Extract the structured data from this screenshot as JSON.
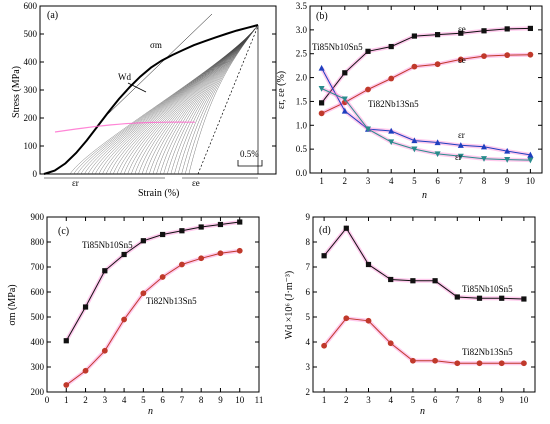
{
  "chart_data": [
    {
      "panel": "(a)",
      "type": "line",
      "title": "",
      "xlabel": "Strain (%)",
      "ylabel": "Stress (MPa)",
      "ylim": [
        0,
        600
      ],
      "yticks": [
        "0",
        "100",
        "200",
        "300",
        "400",
        "500",
        "600"
      ],
      "scale_bar_label": "0.5%",
      "annotations": {
        "sigma_m": "σm",
        "wd": "Wd",
        "eps_r": "εr",
        "eps_e": "εe"
      },
      "grid": false,
      "loading_curve": {
        "strain_fraction": [
          0,
          0.05,
          0.1,
          0.15,
          0.2,
          0.25,
          0.3,
          0.35,
          0.4,
          0.45,
          0.5,
          0.55,
          0.6,
          0.65,
          0.7,
          0.75,
          0.8,
          0.85,
          0.9,
          0.95,
          1.0
        ],
        "stress": [
          0,
          12,
          38,
          75,
          120,
          170,
          220,
          268,
          310,
          348,
          380,
          405,
          425,
          443,
          460,
          474,
          487,
          500,
          512,
          522,
          532
        ]
      },
      "unloading_stress_peak": 532
    },
    {
      "panel": "(b)",
      "type": "line",
      "xlabel": "n",
      "ylabel": "εr, εe (%)",
      "xlim": [
        0.5,
        10.5
      ],
      "ylim": [
        0,
        3.5
      ],
      "xticks": [
        "1",
        "2",
        "3",
        "4",
        "5",
        "6",
        "7",
        "8",
        "9",
        "10"
      ],
      "yticks": [
        "0.0",
        "0.5",
        "1.0",
        "1.5",
        "2.0",
        "2.5",
        "3.0",
        "3.5"
      ],
      "x": [
        1,
        2,
        3,
        4,
        5,
        6,
        7,
        8,
        9,
        10
      ],
      "series": [
        {
          "name": "εe Ti85Nb10Sn5",
          "marker": "square",
          "color": "#111111",
          "halo": "#ff66cc",
          "values": [
            1.47,
            2.1,
            2.55,
            2.65,
            2.87,
            2.9,
            2.93,
            2.98,
            3.02,
            3.03
          ]
        },
        {
          "name": "εe Ti82Nb13Sn5",
          "marker": "circle",
          "color": "#c0392b",
          "halo": "#ff66cc",
          "values": [
            1.25,
            1.48,
            1.75,
            1.98,
            2.23,
            2.28,
            2.38,
            2.45,
            2.47,
            2.48
          ]
        },
        {
          "name": "εr Ti85Nb10Sn5",
          "marker": "triangle-up",
          "color": "#1f3fbf",
          "halo": "#ff66cc",
          "values": [
            2.2,
            1.3,
            0.92,
            0.88,
            0.68,
            0.64,
            0.58,
            0.55,
            0.46,
            0.38
          ]
        },
        {
          "name": "εr Ti82Nb13Sn5",
          "marker": "triangle-down",
          "color": "#2a8c8c",
          "halo": "#ff66cc",
          "values": [
            1.77,
            1.55,
            0.92,
            0.65,
            0.5,
            0.4,
            0.35,
            0.3,
            0.28,
            0.27
          ]
        }
      ],
      "labels": {
        "alloy1": "Ti85Nb10Sn5",
        "alloy2": "Ti82Nb13Sn5",
        "eps_e": "εe",
        "eps_r": "εr"
      }
    },
    {
      "panel": "(c)",
      "type": "line",
      "xlabel": "n",
      "ylabel": "σm (MPa)",
      "xlim": [
        0,
        11
      ],
      "ylim": [
        200,
        900
      ],
      "xticks": [
        "0",
        "1",
        "2",
        "3",
        "4",
        "5",
        "6",
        "7",
        "8",
        "9",
        "10",
        "11"
      ],
      "yticks": [
        "200",
        "300",
        "400",
        "500",
        "600",
        "700",
        "800",
        "900"
      ],
      "x": [
        1,
        2,
        3,
        4,
        5,
        6,
        7,
        8,
        9,
        10
      ],
      "series": [
        {
          "name": "Ti85Nb10Sn5",
          "marker": "square",
          "color": "#111111",
          "halo": "#ff66cc",
          "values": [
            405,
            540,
            685,
            750,
            805,
            830,
            845,
            860,
            870,
            880
          ]
        },
        {
          "name": "Ti82Nb13Sn5",
          "marker": "circle",
          "color": "#c0392b",
          "halo": "#ff66cc",
          "values": [
            228,
            285,
            365,
            490,
            595,
            660,
            710,
            735,
            755,
            765
          ]
        }
      ]
    },
    {
      "panel": "(d)",
      "type": "line",
      "xlabel": "n",
      "ylabel": "Wd ×10⁶ (J·m⁻³)",
      "xlim": [
        0.5,
        10.5
      ],
      "ylim": [
        2,
        9
      ],
      "xticks": [
        "1",
        "2",
        "3",
        "4",
        "5",
        "6",
        "7",
        "8",
        "9",
        "10"
      ],
      "yticks": [
        "2",
        "3",
        "4",
        "5",
        "6",
        "7",
        "8",
        "9"
      ],
      "x": [
        1,
        2,
        3,
        4,
        5,
        6,
        7,
        8,
        9,
        10
      ],
      "series": [
        {
          "name": "Ti85Nb10Sn5",
          "marker": "square",
          "color": "#111111",
          "halo": "#ff66cc",
          "values": [
            7.45,
            8.55,
            7.1,
            6.5,
            6.45,
            6.45,
            5.8,
            5.75,
            5.75,
            5.72
          ]
        },
        {
          "name": "Ti82Nb13Sn5",
          "marker": "circle",
          "color": "#c0392b",
          "halo": "#ff66cc",
          "values": [
            3.85,
            4.95,
            4.85,
            3.95,
            3.25,
            3.25,
            3.15,
            3.15,
            3.15,
            3.15
          ]
        }
      ]
    }
  ]
}
